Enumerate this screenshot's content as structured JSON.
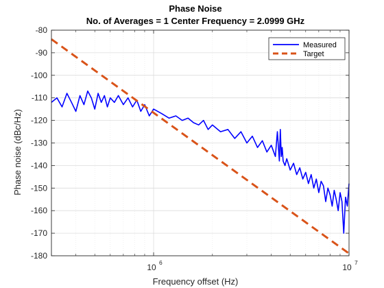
{
  "chart_data": {
    "type": "line",
    "title": "Phase Noise",
    "subtitle": "No. of Averages = 1 Center Frequency = 2.0999 GHz",
    "xlabel": "Frequency offset (Hz)",
    "ylabel": "Phase noise (dBc/Hz)",
    "xscale": "log",
    "xlim": [
      300000,
      10000000
    ],
    "ylim": [
      -180,
      -80
    ],
    "xticks": [
      1000000,
      10000000
    ],
    "xtick_labels": [
      {
        "base": "10",
        "exp": "6"
      },
      {
        "base": "10",
        "exp": "7"
      }
    ],
    "yticks": [
      -80,
      -90,
      -100,
      -110,
      -120,
      -130,
      -140,
      -150,
      -160,
      -170,
      -180
    ],
    "ytick_labels": [
      "-80",
      "-90",
      "-100",
      "-110",
      "-120",
      "-130",
      "-140",
      "-150",
      "-160",
      "-170",
      "-180"
    ],
    "grid": true,
    "legend_position": "top-right",
    "series": [
      {
        "name": "Measured",
        "color": "#0000ff",
        "style": "solid",
        "x": [
          300000,
          320000,
          340000,
          360000,
          380000,
          400000,
          420000,
          440000,
          460000,
          480000,
          500000,
          520000,
          540000,
          560000,
          580000,
          600000,
          630000,
          660000,
          700000,
          740000,
          780000,
          820000,
          860000,
          900000,
          950000,
          1000000,
          1100000,
          1200000,
          1300000,
          1400000,
          1500000,
          1600000,
          1700000,
          1800000,
          1900000,
          2000000,
          2200000,
          2400000,
          2600000,
          2800000,
          3000000,
          3200000,
          3400000,
          3600000,
          3800000,
          4000000,
          4200000,
          4300000,
          4400000,
          4450000,
          4500000,
          4550000,
          4600000,
          4700000,
          4800000,
          5000000,
          5200000,
          5400000,
          5600000,
          5800000,
          6000000,
          6200000,
          6400000,
          6600000,
          6800000,
          7000000,
          7200000,
          7400000,
          7600000,
          7800000,
          8000000,
          8200000,
          8400000,
          8600000,
          8800000,
          9000000,
          9200000,
          9400000,
          9600000,
          9800000,
          10000000
        ],
        "y": [
          -112,
          -110,
          -114,
          -108,
          -112,
          -116,
          -109,
          -113,
          -107,
          -110,
          -115,
          -108,
          -112,
          -109,
          -114,
          -110,
          -112,
          -109,
          -113,
          -110,
          -114,
          -111,
          -116,
          -113,
          -118,
          -115,
          -117,
          -119,
          -118,
          -120,
          -119,
          -121,
          -122,
          -120,
          -124,
          -122,
          -125,
          -124,
          -128,
          -125,
          -130,
          -127,
          -132,
          -129,
          -134,
          -131,
          -136,
          -125,
          -138,
          -124,
          -136,
          -132,
          -138,
          -140,
          -137,
          -142,
          -139,
          -144,
          -141,
          -146,
          -143,
          -148,
          -144,
          -150,
          -146,
          -152,
          -147,
          -149,
          -156,
          -150,
          -153,
          -158,
          -151,
          -155,
          -160,
          -152,
          -156,
          -170,
          -154,
          -158,
          -148
        ]
      },
      {
        "name": "Target",
        "color": "#d95319",
        "style": "dashed",
        "x": [
          300000,
          10000000
        ],
        "y": [
          -84,
          -179
        ]
      }
    ]
  }
}
